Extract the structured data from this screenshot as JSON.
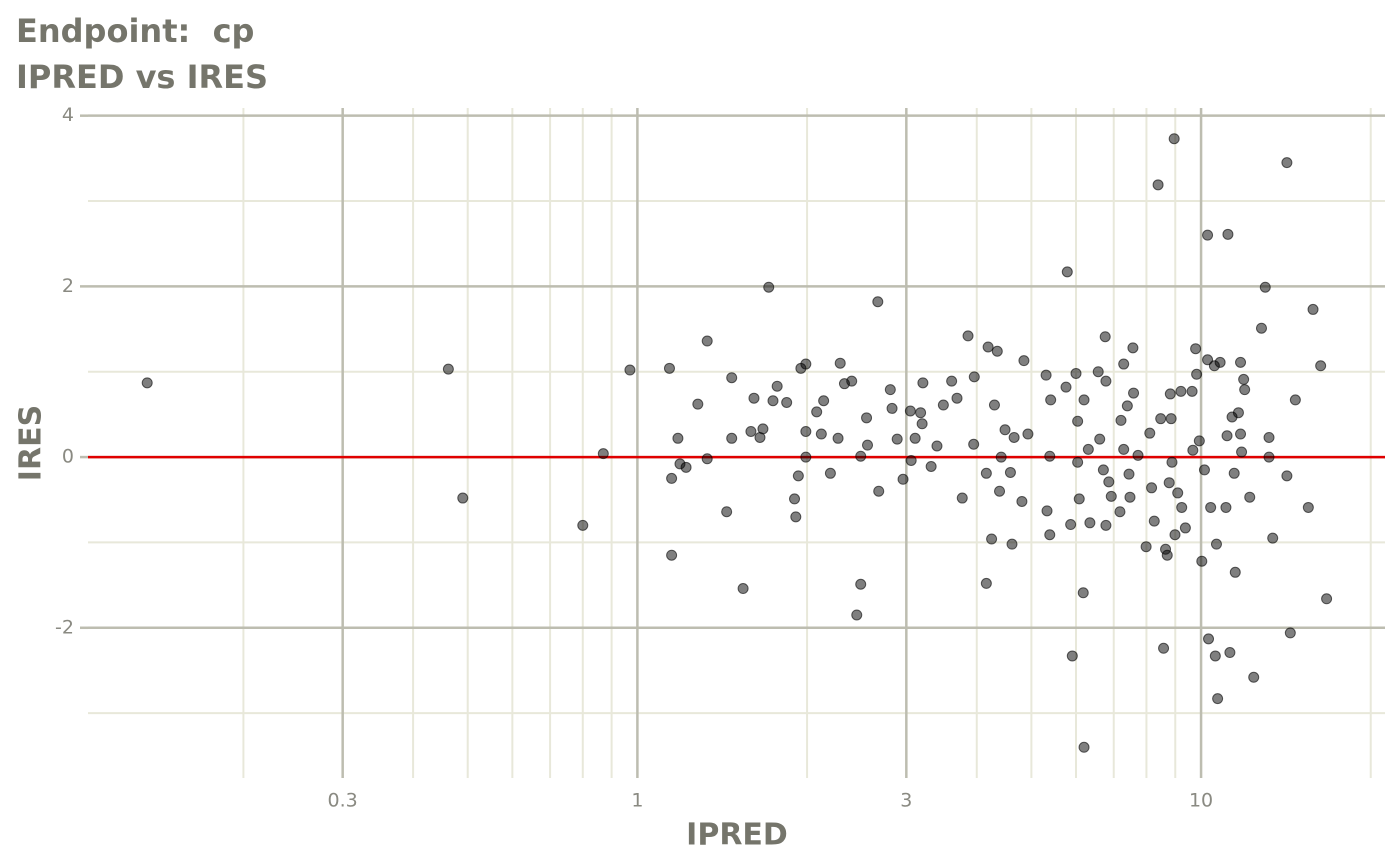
{
  "chart_data": {
    "type": "scatter",
    "title": "Endpoint:  cp",
    "subtitle": "IPRED vs IRES",
    "x_label": "IPRED",
    "y_label": "IRES",
    "x_log": true,
    "grid": true,
    "color": "#000000",
    "hline": {
      "y": 0,
      "color": "#e00000"
    },
    "xlim": [
      0.106,
      21.2
    ],
    "ylim": [
      -3.76,
      4.09
    ],
    "xticks": [
      0.3,
      1,
      3,
      10
    ],
    "yticks": [
      -2,
      0,
      2,
      4
    ],
    "x_minor_ticks": [
      0.2,
      0.4,
      0.5,
      0.6,
      0.7,
      0.8,
      0.9,
      2,
      4,
      5,
      6,
      7,
      8,
      9,
      20
    ],
    "y_minor_ticks": [
      -3,
      -1,
      1,
      3
    ],
    "x": [
      0.135,
      0.462,
      0.49,
      0.8,
      0.87,
      0.97,
      1.14,
      1.15,
      1.15,
      1.18,
      1.19,
      1.22,
      1.28,
      1.33,
      1.33,
      1.44,
      1.47,
      1.47,
      1.54,
      1.59,
      1.61,
      1.65,
      1.67,
      1.71,
      1.74,
      1.77,
      1.84,
      1.9,
      1.91,
      1.93,
      1.95,
      1.99,
      1.99,
      1.99,
      2.08,
      2.12,
      2.14,
      2.2,
      2.27,
      2.29,
      2.33,
      2.4,
      2.45,
      2.49,
      2.49,
      2.55,
      2.56,
      2.67,
      2.68,
      2.81,
      2.83,
      2.89,
      2.96,
      3.05,
      3.06,
      3.11,
      3.18,
      3.2,
      3.21,
      3.32,
      3.4,
      3.49,
      3.61,
      3.69,
      3.77,
      3.86,
      3.96,
      3.95,
      4.16,
      4.16,
      4.19,
      4.25,
      4.3,
      4.35,
      4.39,
      4.42,
      4.49,
      4.59,
      4.62,
      4.66,
      4.81,
      4.85,
      4.93,
      5.31,
      5.33,
      5.39,
      5.41,
      5.39,
      5.76,
      5.79,
      5.87,
      5.91,
      6.0,
      6.04,
      6.04,
      6.08,
      6.18,
      6.2,
      6.2,
      6.31,
      6.35,
      6.57,
      6.61,
      6.71,
      6.76,
      6.78,
      6.78,
      6.86,
      6.93,
      7.18,
      7.21,
      7.29,
      7.29,
      7.4,
      7.45,
      7.48,
      7.57,
      7.59,
      7.73,
      7.99,
      8.11,
      8.17,
      8.26,
      8.39,
      8.48,
      8.58,
      8.65,
      8.71,
      8.78,
      8.82,
      8.85,
      8.88,
      8.96,
      8.99,
      9.09,
      9.21,
      9.24,
      9.38,
      9.64,
      9.67,
      9.78,
      9.82,
      9.93,
      10.03,
      10.14,
      10.27,
      10.27,
      10.31,
      10.4,
      10.56,
      10.6,
      10.65,
      10.7,
      10.81,
      11.07,
      11.12,
      11.16,
      11.25,
      11.35,
      11.45,
      11.5,
      11.65,
      11.75,
      11.75,
      11.8,
      11.9,
      11.95,
      12.2,
      12.4,
      12.8,
      13.0,
      13.2,
      13.2,
      13.4,
      14.2,
      14.2,
      14.4,
      14.7,
      15.5,
      15.8,
      16.3,
      16.7
    ],
    "y": [
      0.87,
      1.03,
      -0.48,
      -0.8,
      0.04,
      1.02,
      1.04,
      -0.25,
      -1.15,
      0.22,
      -0.08,
      -0.12,
      0.62,
      -0.02,
      1.36,
      -0.64,
      0.93,
      0.22,
      -1.54,
      0.3,
      0.69,
      0.23,
      0.33,
      1.99,
      0.66,
      0.83,
      0.64,
      -0.49,
      -0.7,
      -0.22,
      1.04,
      1.09,
      0.3,
      0.0,
      0.53,
      0.27,
      0.66,
      -0.19,
      0.22,
      1.1,
      0.86,
      0.89,
      -1.85,
      -1.49,
      0.01,
      0.46,
      0.14,
      1.82,
      -0.4,
      0.79,
      0.57,
      0.21,
      -0.26,
      0.54,
      -0.04,
      0.22,
      0.52,
      0.39,
      0.87,
      -0.11,
      0.13,
      0.61,
      0.89,
      0.69,
      -0.48,
      1.42,
      0.94,
      0.15,
      -1.48,
      -0.19,
      1.29,
      -0.96,
      0.61,
      1.24,
      -0.4,
      0.0,
      0.32,
      -0.18,
      -1.02,
      0.23,
      -0.52,
      1.13,
      0.27,
      0.96,
      -0.63,
      -0.91,
      0.67,
      0.01,
      0.82,
      2.17,
      -0.79,
      -2.33,
      0.98,
      0.42,
      -0.06,
      -0.49,
      -1.59,
      0.67,
      -3.4,
      0.09,
      -0.77,
      1.0,
      0.21,
      -0.15,
      1.41,
      0.89,
      -0.8,
      -0.29,
      -0.46,
      -0.64,
      0.43,
      1.09,
      0.09,
      0.6,
      -0.2,
      -0.47,
      1.28,
      0.75,
      0.02,
      -1.05,
      0.28,
      -0.36,
      -0.75,
      3.19,
      0.45,
      -2.24,
      -1.08,
      -1.15,
      -0.3,
      0.74,
      0.45,
      -0.06,
      3.73,
      -0.91,
      -0.42,
      0.77,
      -0.59,
      -0.83,
      0.77,
      0.08,
      1.27,
      0.97,
      0.19,
      -1.22,
      -0.15,
      2.6,
      1.14,
      -2.13,
      -0.59,
      1.07,
      -2.33,
      -1.02,
      -2.83,
      1.11,
      -0.59,
      0.25,
      2.61,
      -2.29,
      0.47,
      -0.19,
      -1.35,
      0.52,
      1.11,
      0.27,
      0.06,
      0.91,
      0.79,
      -0.47,
      -2.58,
      1.51,
      1.99,
      0.23,
      0.0,
      -0.95,
      3.45,
      -0.22,
      -2.06,
      0.67,
      -0.59,
      1.73,
      1.07,
      -1.66
    ]
  }
}
